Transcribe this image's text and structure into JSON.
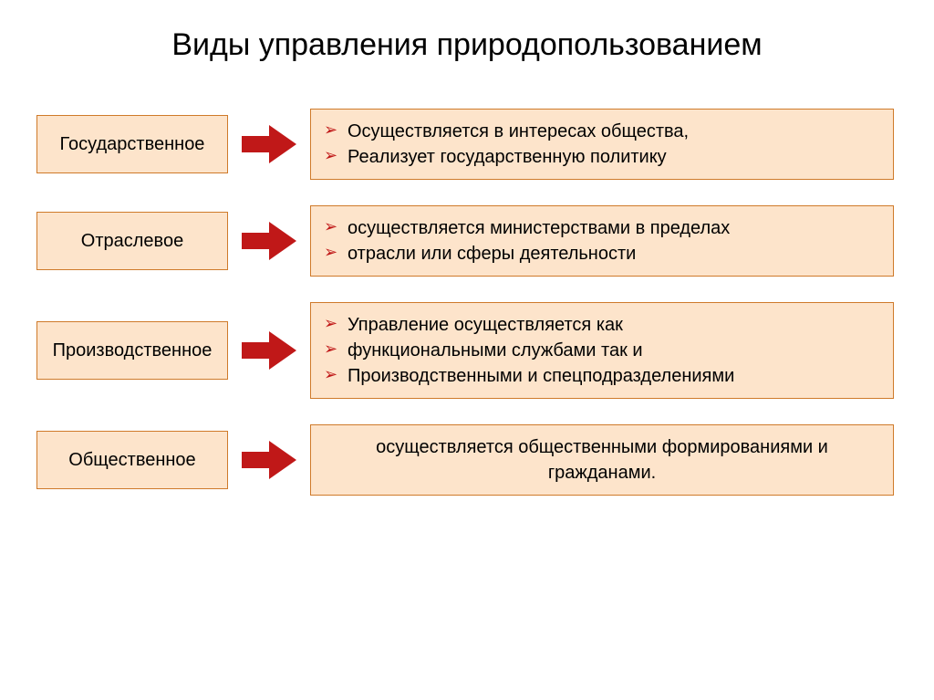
{
  "colors": {
    "box_fill": "#fde4cb",
    "box_border": "#cf7a2a",
    "arrow_fill": "#c01818",
    "bullet_color": "#c01818",
    "title_color": "#000000",
    "text_color": "#000000",
    "background": "#ffffff"
  },
  "typography": {
    "title_fontsize": 34,
    "body_fontsize": 20,
    "font_family": "Arial"
  },
  "layout": {
    "label_box_w": 210,
    "label_box_h": 64,
    "arrow_gap_w": 90,
    "desc_box_w": 640,
    "row_gap": 28
  },
  "title": "Виды управления природопользованием",
  "rows": [
    {
      "label": "Государственное",
      "bulleted": true,
      "items": [
        "Осуществляется в интересах общества,",
        "Реализует государственную политику"
      ]
    },
    {
      "label": "Отраслевое",
      "bulleted": true,
      "items": [
        "осуществляется министерствами в пределах",
        "отрасли или сферы деятельности"
      ]
    },
    {
      "label": "Производственное",
      "bulleted": true,
      "items": [
        "Управление осуществляется как",
        "функциональными службами так и",
        "Производственными и спецподразделениями"
      ]
    },
    {
      "label": "Общественное",
      "bulleted": false,
      "plain": "осуществляется общественными формированиями и гражданами."
    }
  ]
}
